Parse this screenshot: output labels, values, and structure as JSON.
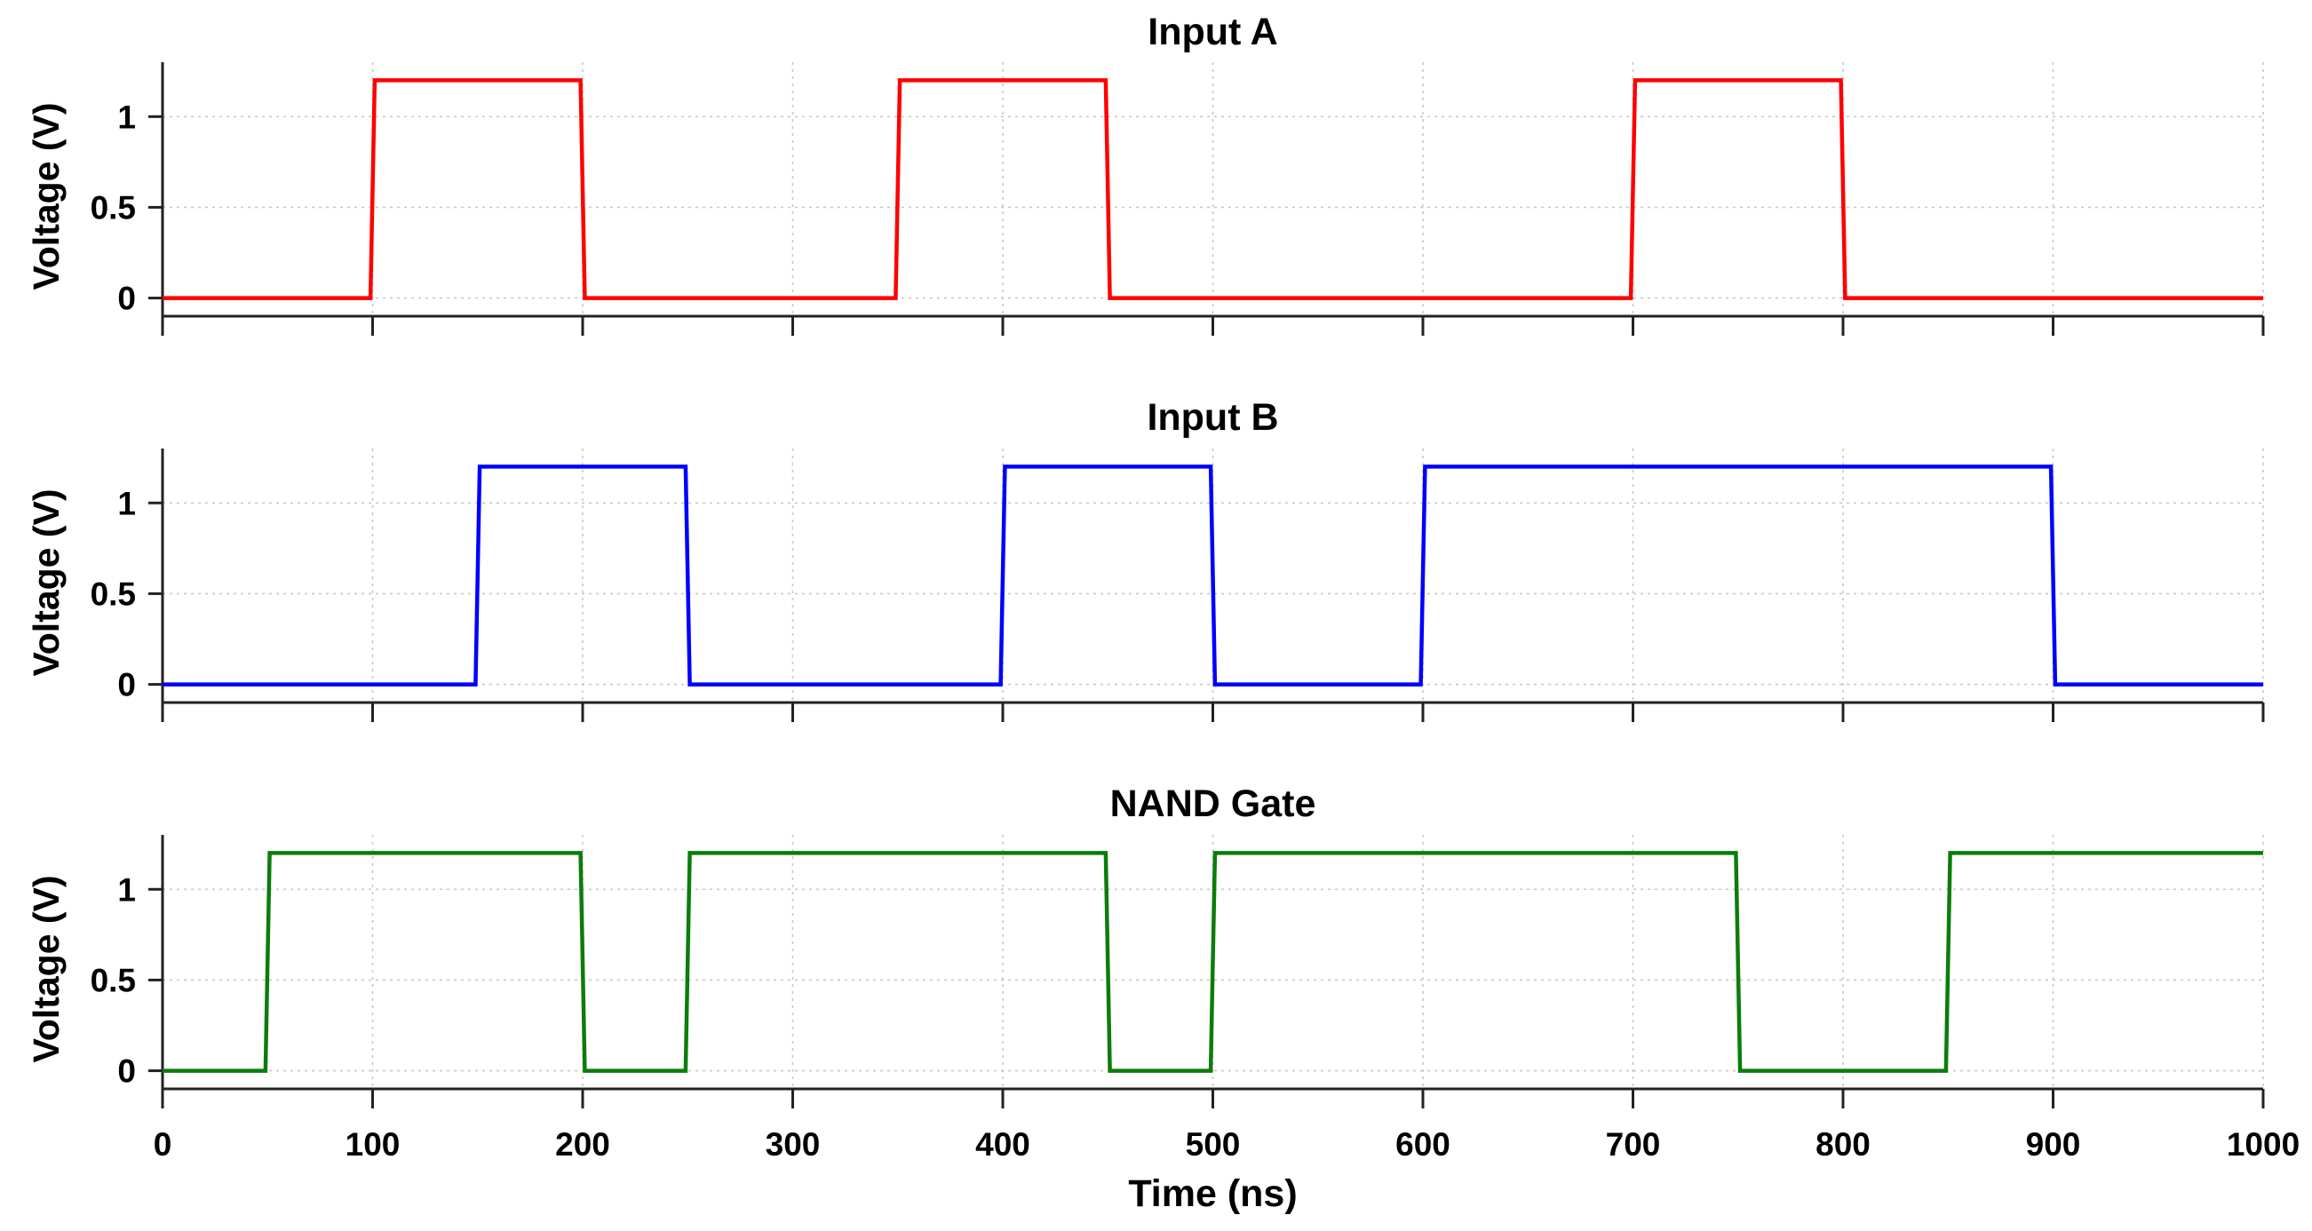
{
  "chart_data": [
    {
      "type": "line",
      "title": "Input A",
      "ylabel": "Voltage (V)",
      "xlabel": "",
      "xlim": [
        0,
        1000
      ],
      "ylim": [
        -0.1,
        1.3
      ],
      "xticks": [
        0,
        100,
        200,
        300,
        400,
        500,
        600,
        700,
        800,
        900,
        1000
      ],
      "yticks": [
        0,
        0.5,
        1
      ],
      "ytick_labels": [
        "0",
        "0.5",
        "1"
      ],
      "grid": true,
      "color": "#ff0000",
      "series": [
        {
          "name": "Input A",
          "x": [
            0,
            99,
            101,
            199,
            201,
            349,
            351,
            449,
            451,
            699,
            701,
            799,
            801,
            1000
          ],
          "y": [
            0,
            0,
            1.2,
            1.2,
            0,
            0,
            1.2,
            1.2,
            0,
            0,
            1.2,
            1.2,
            0,
            0
          ]
        }
      ]
    },
    {
      "type": "line",
      "title": "Input B",
      "ylabel": "Voltage (V)",
      "xlabel": "",
      "xlim": [
        0,
        1000
      ],
      "ylim": [
        -0.1,
        1.3
      ],
      "xticks": [
        0,
        100,
        200,
        300,
        400,
        500,
        600,
        700,
        800,
        900,
        1000
      ],
      "yticks": [
        0,
        0.5,
        1
      ],
      "ytick_labels": [
        "0",
        "0.5",
        "1"
      ],
      "grid": true,
      "color": "#0000ff",
      "series": [
        {
          "name": "Input B",
          "x": [
            0,
            149,
            151,
            249,
            251,
            399,
            401,
            499,
            501,
            599,
            601,
            899,
            901,
            1000
          ],
          "y": [
            0,
            0,
            1.2,
            1.2,
            0,
            0,
            1.2,
            1.2,
            0,
            0,
            1.2,
            1.2,
            0,
            0
          ]
        }
      ]
    },
    {
      "type": "line",
      "title": "NAND Gate",
      "ylabel": "Voltage (V)",
      "xlabel": "Time (ns)",
      "xlim": [
        0,
        1000
      ],
      "ylim": [
        -0.1,
        1.3
      ],
      "xticks": [
        0,
        100,
        200,
        300,
        400,
        500,
        600,
        700,
        800,
        900,
        1000
      ],
      "xtick_labels": [
        "0",
        "100",
        "200",
        "300",
        "400",
        "500",
        "600",
        "700",
        "800",
        "900",
        "1000"
      ],
      "yticks": [
        0,
        0.5,
        1
      ],
      "ytick_labels": [
        "0",
        "0.5",
        "1"
      ],
      "grid": true,
      "color": "#0a7d0a",
      "series": [
        {
          "name": "NAND Gate",
          "x": [
            0,
            49,
            51,
            199,
            201,
            249,
            251,
            449,
            451,
            499,
            501,
            749,
            751,
            849,
            851,
            1000
          ],
          "y": [
            0,
            0,
            1.2,
            1.2,
            0,
            0,
            1.2,
            1.2,
            0,
            0,
            1.2,
            1.2,
            0,
            0,
            1.2,
            1.2
          ]
        }
      ]
    }
  ]
}
